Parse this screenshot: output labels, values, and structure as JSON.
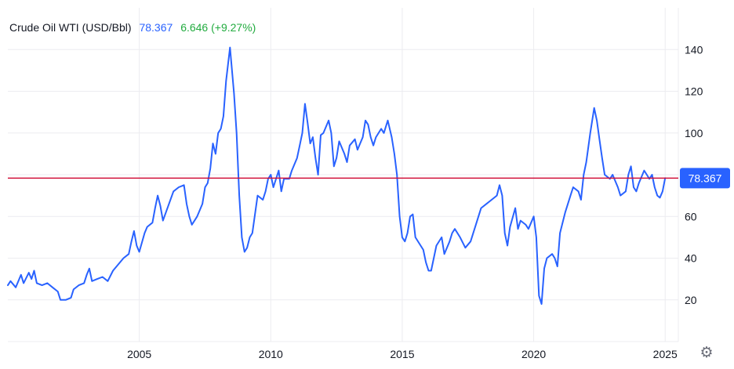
{
  "legend": {
    "symbol": "Crude Oil WTI (USD/Bbl)",
    "price": "78.367",
    "change": "6.646 (+9.27%)"
  },
  "colors": {
    "line": "#2962ff",
    "hline": "#d0103a",
    "price_label_bg": "#2962ff",
    "change": "#22ab3f",
    "grid": "#ececf0",
    "text": "#131722"
  },
  "settings_icon": "gear-icon",
  "chart_data": {
    "type": "line",
    "title": "Crude Oil WTI (USD/Bbl)",
    "xlabel": "",
    "ylabel": "",
    "xlim": [
      2000.0,
      2025.5
    ],
    "ylim": [
      0,
      160
    ],
    "x_ticks": [
      "2005",
      "2010",
      "2015",
      "2020",
      "2025"
    ],
    "y_ticks": [
      20,
      40,
      60,
      80,
      100,
      120,
      140
    ],
    "grid": true,
    "y_axis_side": "right",
    "horizontal_line": {
      "value": 78.367,
      "label": "78.367"
    },
    "series": [
      {
        "name": "",
        "points": [
          [
            2000.0,
            27
          ],
          [
            2000.1,
            29
          ],
          [
            2000.3,
            26
          ],
          [
            2000.5,
            32
          ],
          [
            2000.6,
            28
          ],
          [
            2000.8,
            33
          ],
          [
            2000.9,
            30
          ],
          [
            2001.0,
            34
          ],
          [
            2001.1,
            28
          ],
          [
            2001.3,
            27
          ],
          [
            2001.5,
            28
          ],
          [
            2001.7,
            26
          ],
          [
            2001.9,
            24
          ],
          [
            2002.0,
            20
          ],
          [
            2002.2,
            20
          ],
          [
            2002.4,
            21
          ],
          [
            2002.5,
            25
          ],
          [
            2002.7,
            27
          ],
          [
            2002.9,
            28
          ],
          [
            2003.0,
            32
          ],
          [
            2003.1,
            35
          ],
          [
            2003.2,
            29
          ],
          [
            2003.4,
            30
          ],
          [
            2003.6,
            31
          ],
          [
            2003.8,
            29
          ],
          [
            2004.0,
            34
          ],
          [
            2004.2,
            37
          ],
          [
            2004.4,
            40
          ],
          [
            2004.6,
            42
          ],
          [
            2004.7,
            48
          ],
          [
            2004.8,
            53
          ],
          [
            2004.9,
            46
          ],
          [
            2005.0,
            43
          ],
          [
            2005.2,
            52
          ],
          [
            2005.3,
            55
          ],
          [
            2005.5,
            57
          ],
          [
            2005.6,
            64
          ],
          [
            2005.7,
            70
          ],
          [
            2005.8,
            65
          ],
          [
            2005.9,
            58
          ],
          [
            2006.1,
            65
          ],
          [
            2006.3,
            72
          ],
          [
            2006.5,
            74
          ],
          [
            2006.7,
            75
          ],
          [
            2006.8,
            66
          ],
          [
            2006.9,
            60
          ],
          [
            2007.0,
            56
          ],
          [
            2007.2,
            60
          ],
          [
            2007.4,
            66
          ],
          [
            2007.5,
            74
          ],
          [
            2007.6,
            76
          ],
          [
            2007.7,
            83
          ],
          [
            2007.8,
            95
          ],
          [
            2007.9,
            90
          ],
          [
            2008.0,
            100
          ],
          [
            2008.1,
            102
          ],
          [
            2008.2,
            108
          ],
          [
            2008.3,
            125
          ],
          [
            2008.45,
            141
          ],
          [
            2008.6,
            119
          ],
          [
            2008.7,
            100
          ],
          [
            2008.8,
            70
          ],
          [
            2008.9,
            50
          ],
          [
            2009.0,
            43
          ],
          [
            2009.1,
            45
          ],
          [
            2009.2,
            50
          ],
          [
            2009.3,
            52
          ],
          [
            2009.5,
            70
          ],
          [
            2009.7,
            68
          ],
          [
            2009.8,
            72
          ],
          [
            2009.9,
            78
          ],
          [
            2010.0,
            80
          ],
          [
            2010.1,
            74
          ],
          [
            2010.3,
            82
          ],
          [
            2010.4,
            72
          ],
          [
            2010.5,
            78
          ],
          [
            2010.7,
            78
          ],
          [
            2010.8,
            82
          ],
          [
            2011.0,
            88
          ],
          [
            2011.1,
            94
          ],
          [
            2011.2,
            100
          ],
          [
            2011.3,
            114
          ],
          [
            2011.4,
            105
          ],
          [
            2011.5,
            95
          ],
          [
            2011.6,
            98
          ],
          [
            2011.7,
            88
          ],
          [
            2011.8,
            80
          ],
          [
            2011.9,
            99
          ],
          [
            2012.0,
            100
          ],
          [
            2012.2,
            106
          ],
          [
            2012.3,
            100
          ],
          [
            2012.4,
            84
          ],
          [
            2012.5,
            88
          ],
          [
            2012.6,
            96
          ],
          [
            2012.8,
            90
          ],
          [
            2012.9,
            86
          ],
          [
            2013.0,
            94
          ],
          [
            2013.2,
            97
          ],
          [
            2013.3,
            92
          ],
          [
            2013.5,
            98
          ],
          [
            2013.6,
            106
          ],
          [
            2013.7,
            104
          ],
          [
            2013.8,
            98
          ],
          [
            2013.9,
            94
          ],
          [
            2014.0,
            98
          ],
          [
            2014.2,
            102
          ],
          [
            2014.3,
            100
          ],
          [
            2014.45,
            106
          ],
          [
            2014.6,
            98
          ],
          [
            2014.7,
            90
          ],
          [
            2014.8,
            80
          ],
          [
            2014.9,
            60
          ],
          [
            2015.0,
            50
          ],
          [
            2015.1,
            48
          ],
          [
            2015.2,
            52
          ],
          [
            2015.3,
            60
          ],
          [
            2015.4,
            61
          ],
          [
            2015.5,
            50
          ],
          [
            2015.7,
            46
          ],
          [
            2015.8,
            44
          ],
          [
            2015.9,
            38
          ],
          [
            2016.0,
            34
          ],
          [
            2016.1,
            34
          ],
          [
            2016.3,
            46
          ],
          [
            2016.5,
            50
          ],
          [
            2016.6,
            42
          ],
          [
            2016.8,
            48
          ],
          [
            2016.9,
            52
          ],
          [
            2017.0,
            54
          ],
          [
            2017.2,
            50
          ],
          [
            2017.4,
            45
          ],
          [
            2017.6,
            48
          ],
          [
            2017.8,
            56
          ],
          [
            2018.0,
            64
          ],
          [
            2018.2,
            66
          ],
          [
            2018.4,
            68
          ],
          [
            2018.6,
            70
          ],
          [
            2018.7,
            75
          ],
          [
            2018.8,
            70
          ],
          [
            2018.9,
            52
          ],
          [
            2019.0,
            46
          ],
          [
            2019.1,
            55
          ],
          [
            2019.3,
            64
          ],
          [
            2019.4,
            54
          ],
          [
            2019.5,
            58
          ],
          [
            2019.7,
            56
          ],
          [
            2019.8,
            54
          ],
          [
            2020.0,
            60
          ],
          [
            2020.1,
            50
          ],
          [
            2020.2,
            22
          ],
          [
            2020.3,
            18
          ],
          [
            2020.4,
            35
          ],
          [
            2020.5,
            40
          ],
          [
            2020.7,
            42
          ],
          [
            2020.8,
            40
          ],
          [
            2020.9,
            36
          ],
          [
            2021.0,
            52
          ],
          [
            2021.2,
            62
          ],
          [
            2021.4,
            70
          ],
          [
            2021.5,
            74
          ],
          [
            2021.7,
            72
          ],
          [
            2021.8,
            68
          ],
          [
            2021.9,
            80
          ],
          [
            2022.0,
            86
          ],
          [
            2022.15,
            100
          ],
          [
            2022.3,
            112
          ],
          [
            2022.4,
            106
          ],
          [
            2022.5,
            97
          ],
          [
            2022.6,
            88
          ],
          [
            2022.7,
            80
          ],
          [
            2022.9,
            78
          ],
          [
            2023.0,
            80
          ],
          [
            2023.2,
            74
          ],
          [
            2023.3,
            70
          ],
          [
            2023.5,
            72
          ],
          [
            2023.6,
            80
          ],
          [
            2023.7,
            84
          ],
          [
            2023.8,
            74
          ],
          [
            2023.9,
            72
          ],
          [
            2024.0,
            76
          ],
          [
            2024.2,
            82
          ],
          [
            2024.3,
            80
          ],
          [
            2024.4,
            78
          ],
          [
            2024.5,
            80
          ],
          [
            2024.6,
            74
          ],
          [
            2024.7,
            70
          ],
          [
            2024.8,
            69
          ],
          [
            2024.9,
            72
          ],
          [
            2025.0,
            78.367
          ]
        ]
      }
    ]
  }
}
